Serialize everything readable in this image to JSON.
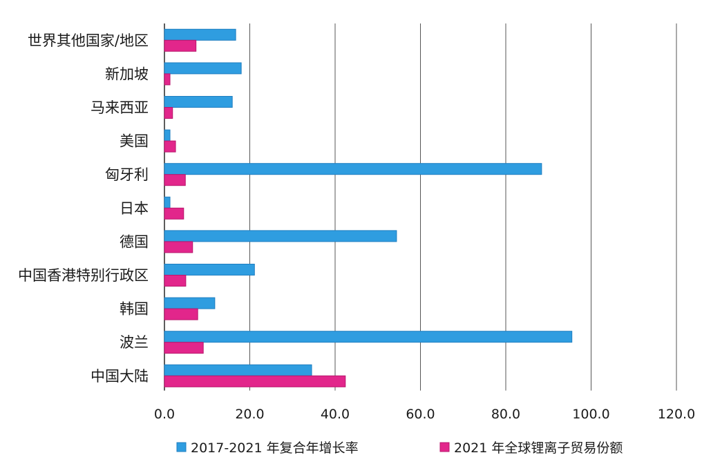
{
  "chart_data": {
    "type": "bar",
    "orientation": "horizontal",
    "categories": [
      "世界其他国家/地区",
      "新加坡",
      "马来西亚",
      "美国",
      "匈牙利",
      "日本",
      "德国",
      "中国香港特别行政区",
      "韩国",
      "波兰",
      "中国大陆"
    ],
    "series": [
      {
        "name": "2017-2021 年复合年增长率",
        "color": "#2f9de0",
        "edge_color": "#1f7ec0",
        "values": [
          16.7,
          18.0,
          15.9,
          1.3,
          88.4,
          1.3,
          54.4,
          21.1,
          11.8,
          95.5,
          34.5
        ]
      },
      {
        "name": "2021 年全球锂离子贸易份额",
        "color": "#e2268b",
        "edge_color": "#b8166c",
        "values": [
          7.4,
          1.3,
          1.9,
          2.6,
          4.9,
          4.5,
          6.6,
          5.0,
          7.8,
          9.1,
          42.4
        ]
      }
    ],
    "xlim": [
      0,
      120
    ],
    "xticks": [
      0,
      20,
      40,
      60,
      80,
      100,
      120
    ],
    "xtick_labels": [
      "0.0",
      "20.0",
      "40.0",
      "60.0",
      "80.0",
      "100.0",
      "120.0"
    ],
    "grid": true,
    "legend_position": "bottom"
  }
}
